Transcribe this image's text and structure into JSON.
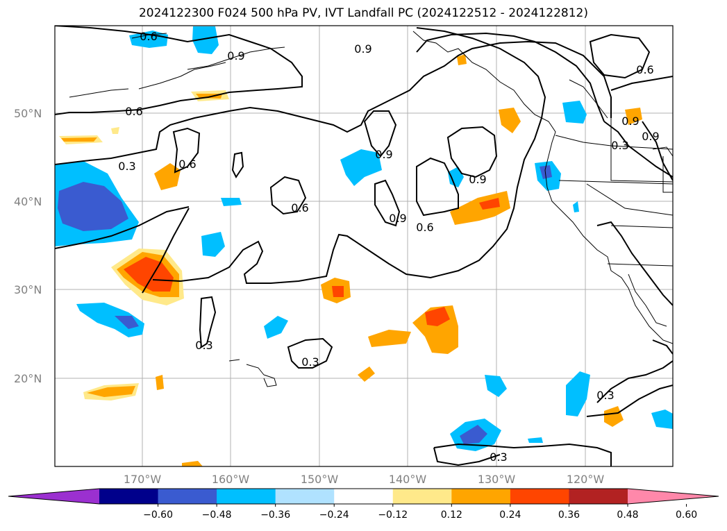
{
  "title": "2024122300 F024 500 hPa PV, IVT Landfall PC (2024122512 - 2024122812)",
  "lat_labels": [
    "50°N",
    "40°N",
    "30°N",
    "20°N"
  ],
  "lon_labels": [
    "170°W",
    "160°W",
    "150°W",
    "140°W",
    "130°W",
    "120°W"
  ],
  "contour_labels": [
    "0.6",
    "0.9",
    "0.9",
    "0.6",
    "0.6",
    "0.3",
    "0.6",
    "0.9",
    "0.6",
    "0.9",
    "0.9",
    "0.6",
    "0.9",
    "0.3",
    "0.3",
    "0.3",
    "0.3",
    "0.3",
    "0.9"
  ],
  "colorbar": {
    "tick_labels": [
      "−0.60",
      "−0.48",
      "−0.36",
      "−0.24",
      "−0.12",
      "0.12",
      "0.24",
      "0.36",
      "0.48",
      "0.60"
    ],
    "colors": [
      "#9b30d0",
      "#00008b",
      "#3a5bd0",
      "#00bfff",
      "#b0e2ff",
      "#ffffff",
      "#ffe98a",
      "#ffa500",
      "#ff4500",
      "#b22222",
      "#ff88aa"
    ]
  }
}
